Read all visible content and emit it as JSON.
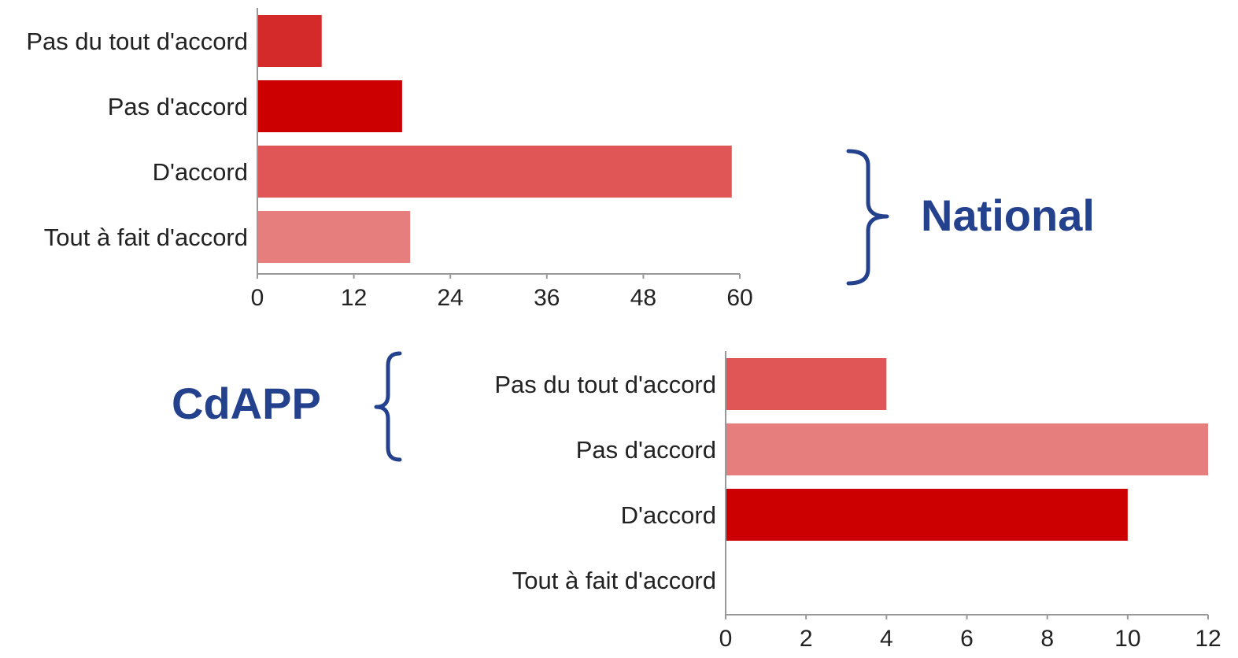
{
  "chart_data": [
    {
      "type": "bar",
      "orientation": "horizontal",
      "group_label": "National",
      "categories": [
        "Pas du tout d'accord",
        "Pas d'accord",
        "D'accord",
        "Tout à fait d'accord"
      ],
      "values": [
        8,
        18,
        59,
        19
      ],
      "colors": [
        "#d42a2a",
        "#cc0000",
        "#e05555",
        "#e67e7e"
      ],
      "xlim": [
        0,
        60
      ],
      "ticks": [
        0,
        12,
        24,
        36,
        48,
        60
      ],
      "grid": false,
      "legend": "none"
    },
    {
      "type": "bar",
      "orientation": "horizontal",
      "group_label": "CdAPP",
      "categories": [
        "Pas du tout d'accord",
        "Pas d'accord",
        "D'accord",
        "Tout à fait d'accord"
      ],
      "values": [
        4,
        12,
        10,
        0
      ],
      "colors": [
        "#e05555",
        "#e67e7e",
        "#cc0000",
        "#e67e7e"
      ],
      "xlim": [
        0,
        12
      ],
      "ticks": [
        0,
        2,
        4,
        6,
        8,
        10,
        12
      ],
      "grid": false,
      "legend": "none"
    }
  ]
}
